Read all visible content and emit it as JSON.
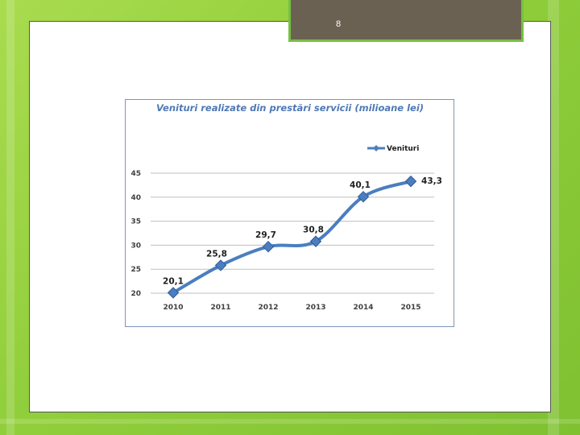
{
  "slide": {
    "page_number": "8"
  },
  "colors": {
    "series": "#4a7ec0",
    "series_dark": "#2e5a97",
    "grid": "#bfbfbf"
  },
  "chart_data": {
    "type": "line",
    "title": "Venituri realizate din prestări servicii (milioane lei)",
    "xlabel": "",
    "ylabel": "",
    "categories": [
      "2010",
      "2011",
      "2012",
      "2013",
      "2014",
      "2015"
    ],
    "series": [
      {
        "name": "Venituri",
        "values": [
          20.1,
          25.8,
          29.7,
          30.8,
          40.1,
          43.3
        ],
        "labels": [
          "20,1",
          "25,8",
          "29,7",
          "30,8",
          "40,1",
          "43,3"
        ]
      }
    ],
    "yticks": [
      20,
      25,
      30,
      35,
      40,
      45
    ],
    "ylim": [
      20,
      45
    ],
    "grid": true,
    "legend": "top-right",
    "smooth": true,
    "marker": "diamond"
  }
}
